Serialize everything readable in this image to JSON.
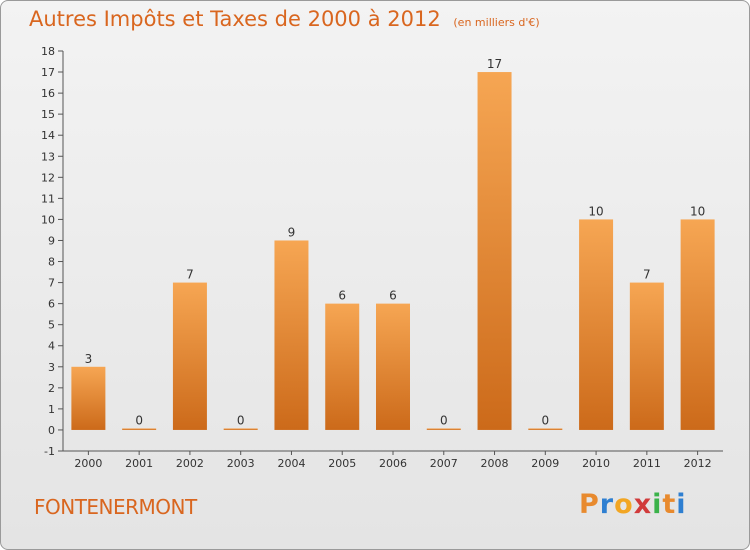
{
  "header": {
    "title": "Autres Impôts et Taxes de 2000 à 2012",
    "subtitle": "(en milliers d'€)"
  },
  "footer": {
    "town": "FONTENERMONT",
    "logo": [
      "P",
      "r",
      "o",
      "x",
      "i",
      "t",
      "i"
    ]
  },
  "colors": {
    "accent": "#d9661f",
    "bar_top": "#f6a653",
    "bar_bottom": "#cc6a1a",
    "logo": [
      "#e88a2e",
      "#2e7fd1",
      "#f2a623",
      "#d13b3b",
      "#3bb24a",
      "#e88a2e",
      "#2e7fd1"
    ]
  },
  "chart_data": {
    "type": "bar",
    "categories": [
      "2000",
      "2001",
      "2002",
      "2003",
      "2004",
      "2005",
      "2006",
      "2007",
      "2008",
      "2009",
      "2010",
      "2011",
      "2012"
    ],
    "values": [
      3,
      0,
      7,
      0,
      9,
      6,
      6,
      0,
      17,
      0,
      10,
      7,
      10
    ],
    "y_ticks": [
      "-1",
      "0",
      "1",
      "2",
      "3",
      "4",
      "5",
      "6",
      "7",
      "8",
      "9",
      "10",
      "11",
      "12",
      "13",
      "14",
      "15",
      "16",
      "17",
      "18"
    ],
    "ylim": [
      -1,
      18
    ],
    "grid": false,
    "legend": "none"
  }
}
